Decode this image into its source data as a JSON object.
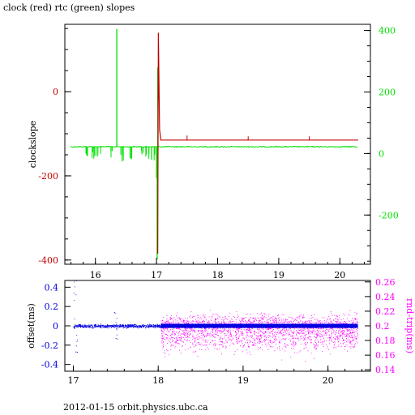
{
  "title": "clock (red) rtc (green) slopes",
  "footer": "2012-01-15 orbit.physics.ubc.ca",
  "colors": {
    "red": "#c00000",
    "green": "#00e000",
    "blue": "#0000e0",
    "magenta": "#ff00ff",
    "axis": "#000000"
  },
  "chart_data": [
    {
      "type": "line",
      "title": "",
      "xlabel": "",
      "ylabel": "clockslope",
      "xlim": [
        15.5,
        20.5
      ],
      "xticks": [
        16,
        17,
        18,
        19,
        20
      ],
      "ylim_left": [
        -410,
        160
      ],
      "yticks_left": [
        0,
        -200,
        -400
      ],
      "ylim_right": [
        -360,
        420
      ],
      "yticks_right": [
        400,
        200,
        0,
        -200
      ],
      "y2label": "",
      "series": [
        {
          "color": "red",
          "axis": "left",
          "baseline": -115,
          "points": [
            [
              17.02,
              -385
            ],
            [
              17.03,
              140
            ],
            [
              17.05,
              -90
            ],
            [
              17.07,
              -115
            ],
            [
              17.5,
              -115
            ],
            [
              18.5,
              -115
            ],
            [
              19.5,
              -115
            ],
            [
              20.3,
              -115
            ]
          ],
          "spikes": [
            [
              17.5,
              -108
            ],
            [
              18.5,
              -110
            ],
            [
              19.5,
              -110
            ]
          ]
        },
        {
          "color": "green",
          "axis": "right",
          "baseline": 22,
          "x_start": 15.6,
          "x_end": 20.3,
          "spikes": [
            [
              16.35,
              405
            ],
            [
              17.02,
              280
            ],
            [
              17.01,
              -345
            ],
            [
              17.0,
              -80
            ]
          ],
          "dips": [
            [
              15.85,
              0
            ],
            [
              15.95,
              5
            ],
            [
              16.05,
              3
            ],
            [
              16.25,
              8
            ],
            [
              16.45,
              0
            ],
            [
              16.6,
              5
            ],
            [
              16.75,
              10
            ],
            [
              16.85,
              5
            ],
            [
              16.95,
              0
            ]
          ]
        }
      ]
    },
    {
      "type": "scatter",
      "title": "",
      "xlabel": "",
      "ylabel": "offset(ms)",
      "y2label": "rnd-trip(ms)",
      "xlim": [
        16.9,
        20.5
      ],
      "xticks": [
        17,
        18,
        19,
        20
      ],
      "ylim_left": [
        -0.47,
        0.47
      ],
      "yticks_left": [
        0.4,
        0.2,
        0,
        -0.2,
        -0.4
      ],
      "ylim_right": [
        0.138,
        0.262
      ],
      "yticks_right": [
        0.26,
        0.24,
        0.22,
        0.2,
        0.18,
        0.16,
        0.14
      ],
      "series": [
        {
          "color": "blue",
          "axis": "left",
          "x_start": 17.0,
          "x_end": 20.35,
          "center": 0.0,
          "spread": 0.03
        },
        {
          "color": "magenta",
          "axis": "right",
          "x_start": 18.03,
          "x_end": 20.35,
          "center": 0.197,
          "spread_up": 0.018,
          "spread_down": 0.035
        }
      ]
    }
  ]
}
